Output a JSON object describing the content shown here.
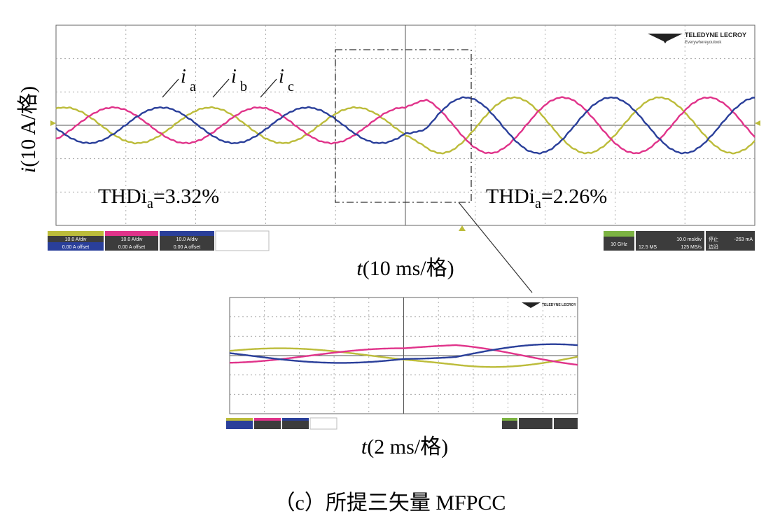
{
  "chart_data": [
    {
      "type": "line",
      "ylabel": "i(10 A/格)",
      "xlabel": "t(10 ms/格)",
      "series": [
        {
          "name": "ia",
          "color": "#bcbc3a"
        },
        {
          "name": "ib",
          "color": "#e0338a"
        },
        {
          "name": "ic",
          "color": "#2a3f9a"
        }
      ],
      "series_labels": {
        "ia": "i",
        "ia_sub": "a",
        "ib": "i",
        "ib_sub": "b",
        "ic": "i",
        "ic_sub": "c"
      },
      "divisions": {
        "x": 10,
        "y": 6
      },
      "x_range_ms": [
        0,
        100
      ],
      "step_time_ms": 50,
      "before": {
        "amplitude_A": 3.2,
        "frequency_hz": 48
      },
      "after": {
        "amplitude_A": 5.0,
        "frequency_hz": 48
      },
      "annotations": {
        "thd_before": "THDi",
        "thd_before_sub": "a",
        "thd_before_val": "=3.32%",
        "thd_after": "THDi",
        "thd_after_sub": "a",
        "thd_after_val": "=2.26%"
      },
      "logo": "TELEDYNE LECROY",
      "logo_tagline": "Everywhereyoulook"
    },
    {
      "type": "line",
      "xlabel": "t(2 ms/格)",
      "divisions": {
        "x": 10,
        "y": 6
      },
      "x_range_ms": [
        40,
        60
      ],
      "logo": "TELEDYNE LECROY"
    }
  ],
  "caption": "（c）所提三矢量 MFPCC",
  "scope_info": {
    "ch1_scale": "10.0 A/div",
    "ch1_offset": "0.00 A offset",
    "ch2_scale": "10.0 A/div",
    "ch2_offset": "0.00 A offset",
    "ch3_scale": "10.0 A/div",
    "ch3_offset": "0.00 A offset",
    "bw": "10 GHz",
    "timebase": "10.0 ms/div",
    "trigger": "停止",
    "samples": "12.5 MS",
    "rate": "125 MS/s",
    "trig_level": "-263 mA",
    "mode": "边沿"
  }
}
